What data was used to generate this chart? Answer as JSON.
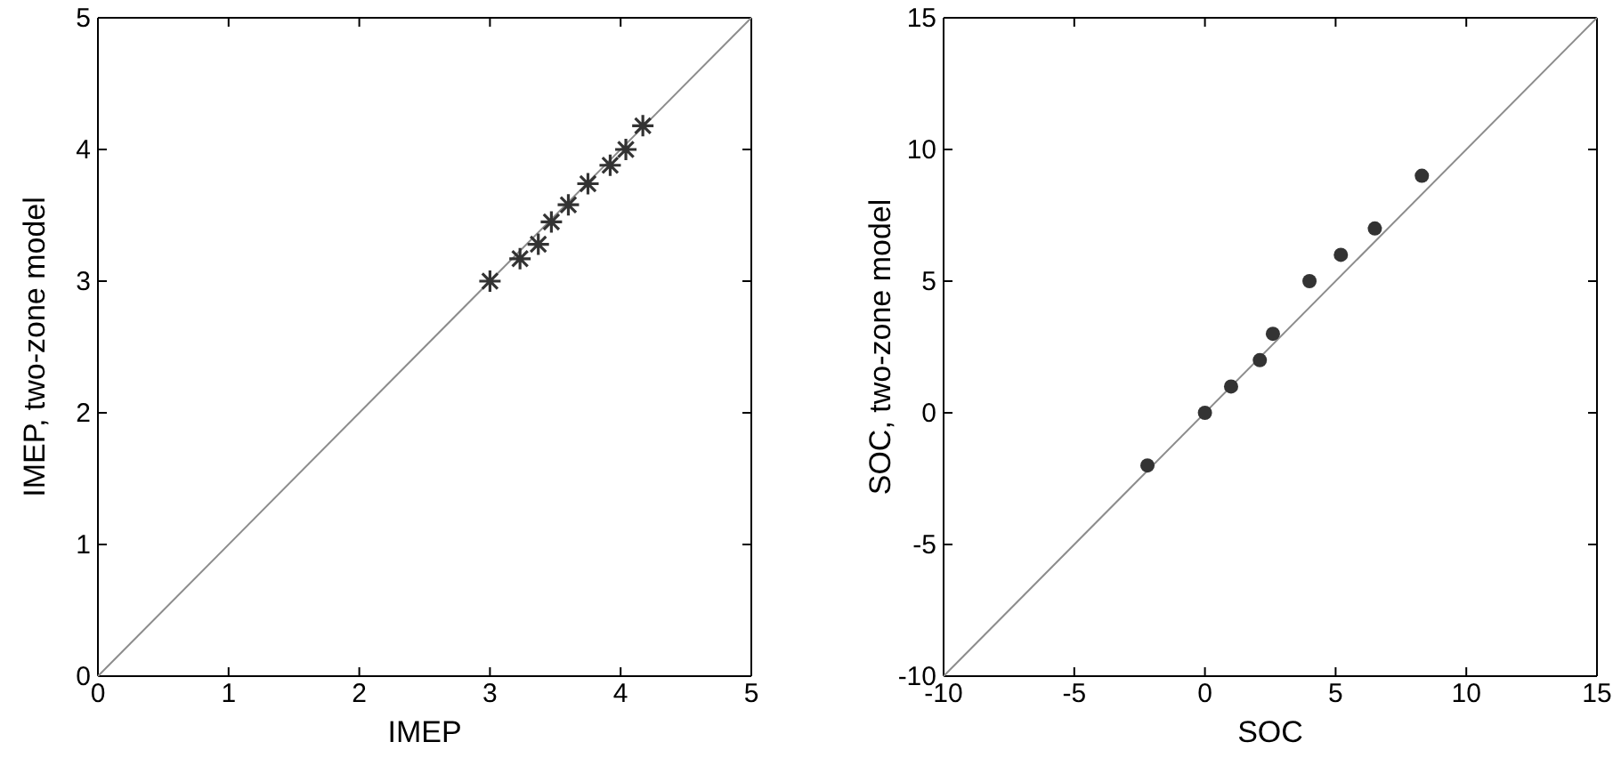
{
  "chart_data": [
    {
      "type": "scatter",
      "xlabel": "IMEP",
      "ylabel": "IMEP, two-zone model",
      "xlim": [
        0,
        5
      ],
      "ylim": [
        0,
        5
      ],
      "xticks": [
        0,
        1,
        2,
        3,
        4,
        5
      ],
      "yticks": [
        0,
        1,
        2,
        3,
        4,
        5
      ],
      "series": [
        {
          "type": "line",
          "x": [
            0,
            5
          ],
          "values": [
            0,
            5
          ],
          "color": "#8c8c8c"
        },
        {
          "type": "scatter",
          "x": [
            3.0,
            3.23,
            3.37,
            3.47,
            3.6,
            3.75,
            3.92,
            4.04,
            4.17
          ],
          "values": [
            3.0,
            3.17,
            3.28,
            3.45,
            3.58,
            3.74,
            3.88,
            4.0,
            4.18
          ],
          "color": "#333333",
          "marker": "cross"
        }
      ]
    },
    {
      "type": "scatter",
      "xlabel": "SOC",
      "ylabel": "SOC, two-zone model",
      "xlim": [
        -10,
        15
      ],
      "ylim": [
        -10,
        15
      ],
      "xticks": [
        -10,
        -5,
        0,
        5,
        10,
        15
      ],
      "yticks": [
        -10,
        -5,
        0,
        5,
        10,
        15
      ],
      "series": [
        {
          "type": "line",
          "x": [
            -10,
            15
          ],
          "values": [
            -10,
            15
          ],
          "color": "#8c8c8c"
        },
        {
          "type": "scatter",
          "x": [
            -2.2,
            0.0,
            1.0,
            2.1,
            2.6,
            4.0,
            5.2,
            6.5,
            8.3
          ],
          "values": [
            -2,
            0,
            1,
            2,
            3,
            5,
            6,
            7,
            9
          ],
          "color": "#333333",
          "marker": "circle"
        }
      ]
    }
  ]
}
